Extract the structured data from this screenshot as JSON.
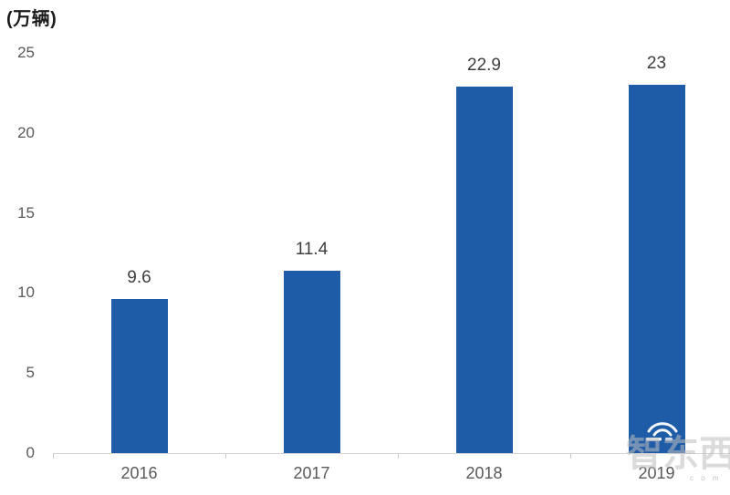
{
  "chart": {
    "title": "(万辆)",
    "watermark": {
      "text": "智东西",
      "subtext": "c o m",
      "icon": "wifi-arcs-icon"
    },
    "colors": {
      "bar": "#1e5ca8",
      "axis_line": "#d4d4d4",
      "tick_label": "#595959",
      "data_label": "#3d3d3d",
      "title": "#1c1c1c",
      "watermark": "#bebebe"
    }
  },
  "chart_data": {
    "type": "bar",
    "title": "(万辆)",
    "categories": [
      "2016",
      "2017",
      "2018",
      "2019"
    ],
    "values": [
      9.6,
      11.4,
      22.9,
      23
    ],
    "data_labels": [
      "9.6",
      "11.4",
      "22.9",
      "23"
    ],
    "xlabel": "",
    "ylabel": "(万辆)",
    "ylim": [
      0,
      25
    ],
    "yticks": [
      0,
      5,
      10,
      15,
      20,
      25
    ],
    "grid": false,
    "legend": false,
    "bar_color": "#1e5ca8"
  }
}
